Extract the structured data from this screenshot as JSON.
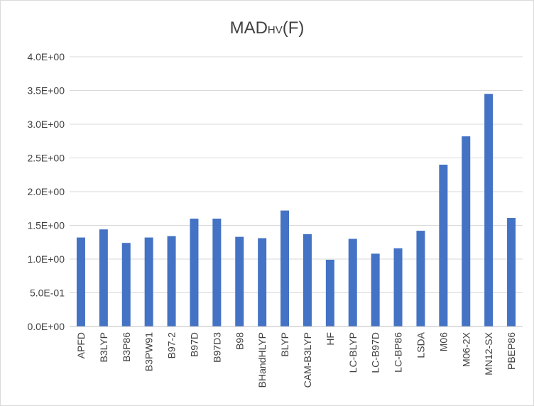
{
  "chart_data": {
    "type": "bar",
    "title": "MAD",
    "title_subscript": "HV",
    "title_suffix": "(F)",
    "xlabel": "",
    "ylabel": "",
    "ylim": [
      0,
      4
    ],
    "yticks": [
      0,
      0.5,
      1.0,
      1.5,
      2.0,
      2.5,
      3.0,
      3.5,
      4.0
    ],
    "ytick_labels": [
      "0.0E+00",
      "5.0E-01",
      "1.0E+00",
      "1.5E+00",
      "2.0E+00",
      "2.5E+00",
      "3.0E+00",
      "3.5E+00",
      "4.0E+00"
    ],
    "grid": true,
    "legend": "none",
    "bar_color": "#4472c4",
    "categories": [
      "APFD",
      "B3LYP",
      "B3P86",
      "B3PW91",
      "B97-2",
      "B97D",
      "B97D3",
      "B98",
      "BHandHLYP",
      "BLYP",
      "CAM-B3LYP",
      "HF",
      "LC-BLYP",
      "LC-B97D",
      "LC-BP86",
      "LSDA",
      "M06",
      "M06-2X",
      "MN12-SX",
      "PBEP86"
    ],
    "values": [
      1.32,
      1.44,
      1.24,
      1.32,
      1.34,
      1.6,
      1.6,
      1.33,
      1.31,
      1.72,
      1.37,
      0.99,
      1.3,
      1.08,
      1.16,
      1.42,
      2.4,
      2.82,
      3.45,
      1.61
    ]
  }
}
